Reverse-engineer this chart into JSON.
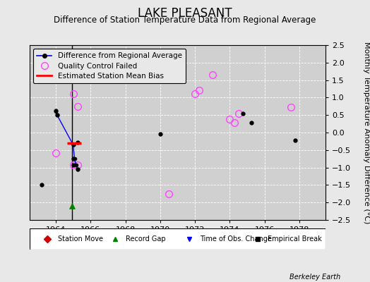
{
  "title": "LAKE PLEASANT",
  "subtitle": "Difference of Station Temperature Data from Regional Average",
  "ylabel": "Monthly Temperature Anomaly Difference (°C)",
  "xlim": [
    1962.5,
    1979.5
  ],
  "ylim": [
    -2.5,
    2.5
  ],
  "xticks": [
    1964,
    1966,
    1968,
    1970,
    1972,
    1974,
    1976,
    1978
  ],
  "yticks": [
    -2.5,
    -2,
    -1.5,
    -1,
    -0.5,
    0,
    0.5,
    1,
    1.5,
    2,
    2.5
  ],
  "fig_facecolor": "#e8e8e8",
  "plot_facecolor": "#d0d0d0",
  "main_line_x": [
    1964.0,
    1964.08,
    1965.0,
    1965.08,
    1965.17,
    1965.25
  ],
  "main_line_y": [
    0.6,
    0.5,
    -0.35,
    -0.75,
    -0.92,
    -1.05
  ],
  "dots_black": [
    [
      1963.2,
      -1.5
    ],
    [
      1964.0,
      0.62
    ],
    [
      1964.08,
      0.5
    ],
    [
      1965.0,
      -0.35
    ],
    [
      1965.0,
      -0.75
    ],
    [
      1965.0,
      -0.92
    ],
    [
      1965.25,
      -1.05
    ],
    [
      1965.25,
      -0.28
    ]
  ],
  "qc_failed_circles": [
    [
      1965.0,
      1.1
    ],
    [
      1965.25,
      0.75
    ],
    [
      1964.0,
      -0.58
    ],
    [
      1965.0,
      -0.92
    ],
    [
      1965.25,
      -0.92
    ],
    [
      1970.5,
      -1.75
    ],
    [
      1972.0,
      1.1
    ],
    [
      1972.25,
      1.2
    ],
    [
      1973.0,
      1.65
    ],
    [
      1974.0,
      0.38
    ],
    [
      1974.25,
      0.28
    ],
    [
      1974.5,
      0.55
    ],
    [
      1977.5,
      0.72
    ]
  ],
  "scatter_black": [
    [
      1970.0,
      -0.05
    ],
    [
      1974.75,
      0.55
    ],
    [
      1975.25,
      0.28
    ],
    [
      1977.75,
      -0.22
    ]
  ],
  "red_line": {
    "x": [
      1964.65,
      1965.45
    ],
    "y": [
      -0.3,
      -0.3
    ]
  },
  "vertical_line_x": 1964.92,
  "record_gap_x": 1964.92,
  "record_gap_y": -2.1,
  "bottom_legend": [
    {
      "label": "Station Move",
      "color": "#cc0000",
      "marker": "D"
    },
    {
      "label": "Record Gap",
      "color": "green",
      "marker": "^"
    },
    {
      "label": "Time of Obs. Change",
      "color": "blue",
      "marker": "v"
    },
    {
      "label": "Empirical Break",
      "color": "black",
      "marker": "s"
    }
  ],
  "title_fontsize": 12,
  "subtitle_fontsize": 8.5,
  "axis_fontsize": 8,
  "legend_fontsize": 7.5
}
